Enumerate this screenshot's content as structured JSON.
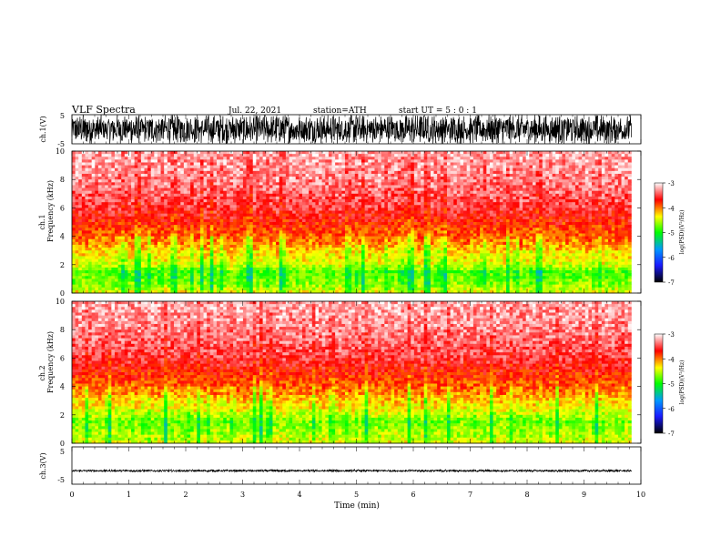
{
  "header": {
    "title": "VLF  Spectra",
    "date": "Jul.  22,  2021",
    "station": "station=ATH",
    "start": "start  UT  =    5  : 0   : 1"
  },
  "colorbar_stops": [
    "#000000",
    "#1a1aff",
    "#0099ff",
    "#00ff00",
    "#ffff00",
    "#ff0000",
    "#ffffff"
  ],
  "chart_data": [
    {
      "type": "line",
      "name": "ch1-waveform",
      "ylabel": "ch.1(V)",
      "ylim": [
        -5,
        5
      ],
      "ytick_labels": [
        "5",
        "-5"
      ],
      "xlim": [
        0,
        10
      ],
      "trace_color": "#000000",
      "envelope": {
        "upper": 5,
        "lower": -5
      }
    },
    {
      "type": "heatmap",
      "name": "ch1-spectrogram",
      "ylabel": "ch.1\nFrequency  (kHz)",
      "ylim": [
        0,
        10
      ],
      "yticks": [
        0,
        2,
        4,
        6,
        8,
        10
      ],
      "xlim": [
        0,
        10
      ],
      "data_extent_x": [
        0,
        9.83
      ],
      "colorbar": {
        "label": "log(PSD)(V²/Hz)",
        "ticks": [
          "-3",
          "-4",
          "-5",
          "-6",
          "-7"
        ],
        "range": [
          -7,
          -3
        ]
      },
      "profile_khz": [
        0,
        0.5,
        1,
        1.5,
        2,
        2.5,
        3,
        3.5,
        4,
        5,
        6,
        8,
        10
      ],
      "profile_logpsd": [
        -4.3,
        -4.6,
        -4.7,
        -4.8,
        -4.4,
        -4.3,
        -4.2,
        -4.0,
        -3.9,
        -3.7,
        -3.5,
        -3.3,
        -3.2
      ]
    },
    {
      "type": "heatmap",
      "name": "ch2-spectrogram",
      "ylabel": "ch.2\nFrequency  (kHz)",
      "ylim": [
        0,
        10
      ],
      "yticks": [
        0,
        2,
        4,
        6,
        8,
        10
      ],
      "xlim": [
        0,
        10
      ],
      "data_extent_x": [
        0,
        9.83
      ],
      "colorbar": {
        "label": "log(PSD)(V²/Hz)",
        "ticks": [
          "-3",
          "-4",
          "-5",
          "-6",
          "-7"
        ],
        "range": [
          -7,
          -3
        ]
      },
      "profile_khz": [
        0,
        0.5,
        1,
        1.5,
        2,
        2.5,
        3,
        3.5,
        4,
        5,
        6,
        8,
        10
      ],
      "profile_logpsd": [
        -4.4,
        -4.5,
        -4.6,
        -4.7,
        -4.5,
        -4.3,
        -4.2,
        -4.0,
        -3.9,
        -3.7,
        -3.5,
        -3.3,
        -3.2
      ]
    },
    {
      "type": "line",
      "name": "ch3-waveform",
      "ylabel": "ch.3(V)",
      "ylim": [
        -5,
        5
      ],
      "ytick_labels": [
        "5",
        "-5"
      ],
      "xlim": [
        0,
        10
      ],
      "xticks": [
        0,
        1,
        2,
        3,
        4,
        5,
        6,
        7,
        8,
        9,
        10
      ],
      "xlabel": "Time  (min)",
      "trace_color": "#000000",
      "envelope": {
        "upper": -1.1,
        "lower": -1.7
      }
    }
  ]
}
